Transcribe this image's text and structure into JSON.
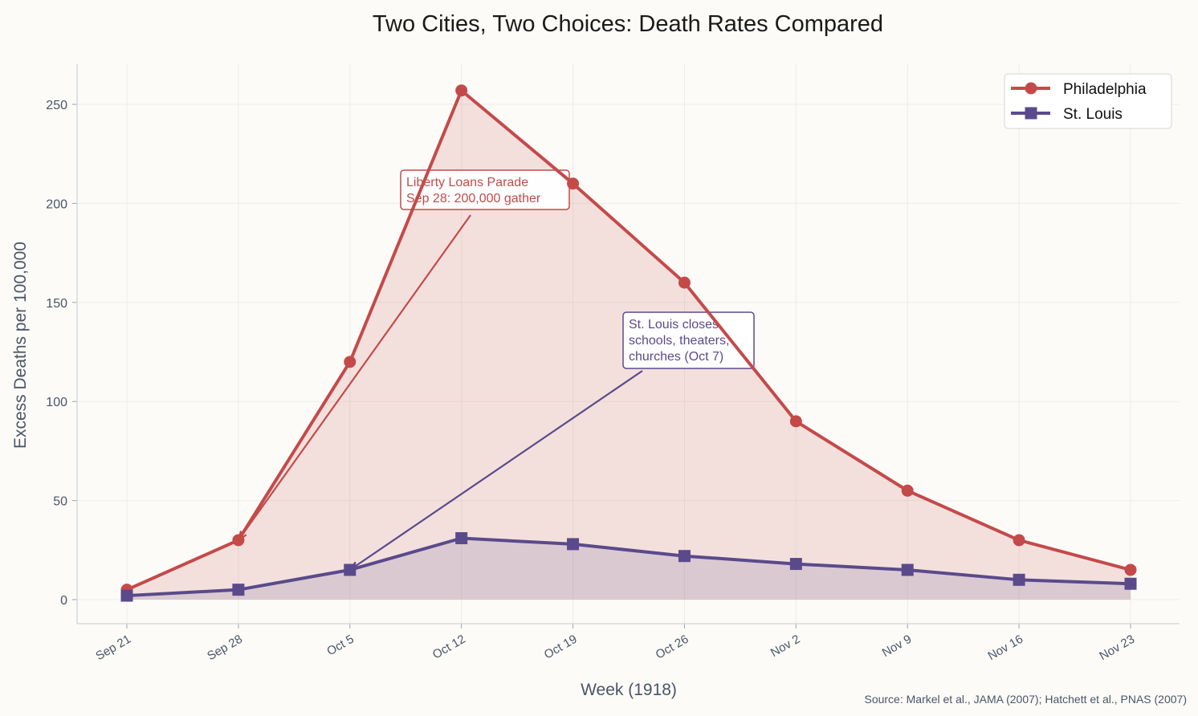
{
  "chart_data": {
    "type": "line",
    "title": "Two Cities, Two Choices: Death Rates Compared",
    "xlabel": "Week (1918)",
    "ylabel": "Excess Deaths per 100,000",
    "categories": [
      "Sep 21",
      "Sep 28",
      "Oct 5",
      "Oct 12",
      "Oct 19",
      "Oct 26",
      "Nov 2",
      "Nov 9",
      "Nov 16",
      "Nov 23"
    ],
    "ylim": [
      -12,
      270
    ],
    "yticks": [
      0,
      50,
      100,
      150,
      200,
      250
    ],
    "grid": true,
    "legend_position": "top-right",
    "series": [
      {
        "name": "Philadelphia",
        "color": "#c44a4a",
        "marker": "circle",
        "filled": true,
        "values": [
          5,
          30,
          120,
          257,
          210,
          160,
          90,
          55,
          30,
          15
        ]
      },
      {
        "name": "St. Louis",
        "color": "#5a4a8c",
        "marker": "square",
        "filled": true,
        "values": [
          2,
          5,
          15,
          31,
          28,
          22,
          18,
          15,
          10,
          8
        ]
      }
    ],
    "annotations": [
      {
        "lines": [
          "Liberty Loans Parade",
          "Sep 28: 200,000 gather"
        ],
        "color": "#c44a4a",
        "target_category": "Sep 28",
        "target_value": 30
      },
      {
        "lines": [
          "St. Louis closes",
          "schools, theaters,",
          "churches (Oct 7)"
        ],
        "color": "#5a4a8c",
        "target_category": "Oct 5",
        "target_value": 15
      }
    ],
    "source": "Source: Markel et al., JAMA (2007); Hatchett et al., PNAS (2007)"
  }
}
